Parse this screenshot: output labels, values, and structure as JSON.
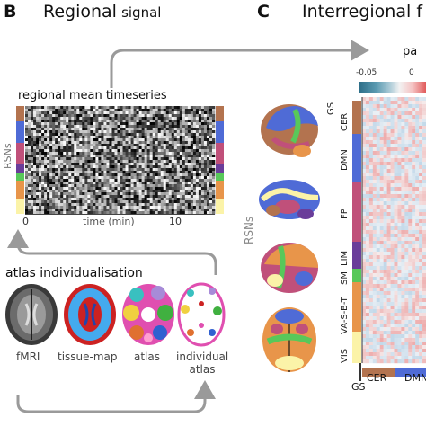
{
  "panel_b": {
    "letter": "B",
    "title_main": "Regional",
    "title_sub": "signal",
    "timeseries_label": "regional mean timeseries",
    "y_axis_label": "RSNs",
    "x_axis_label": "time (min)",
    "x_ticks": [
      "0",
      "10"
    ],
    "atlas_title": "atlas individualisation",
    "brain_captions": [
      "fMRI",
      "tissue-map",
      "atlas",
      "individual\natlas"
    ]
  },
  "panel_c": {
    "letter": "C",
    "title": "Interregional f",
    "colorbar_label": "pa",
    "colorbar_ticks": [
      "-0.05",
      "0"
    ],
    "rsn_side_label": "RSNs",
    "row_labels": [
      "GS",
      "CER",
      "DMN",
      "FP",
      "LIM",
      "SM",
      "VA-S-B-T",
      "VIS"
    ],
    "corner_label": "GS",
    "bottom_labels": [
      "CER",
      "DMN"
    ]
  },
  "colors": {
    "cer": "#b3734f",
    "dmn": "#4f6bd6",
    "fp": "#c0507a",
    "lim": "#6a3d9a",
    "sm": "#58c85a",
    "vasbt": "#e8954a",
    "vis": "#fbf3a8",
    "colorbar_neg": "#2e6f89",
    "colorbar_pos": "#e15a5a",
    "arrow": "#9a9a9a"
  }
}
